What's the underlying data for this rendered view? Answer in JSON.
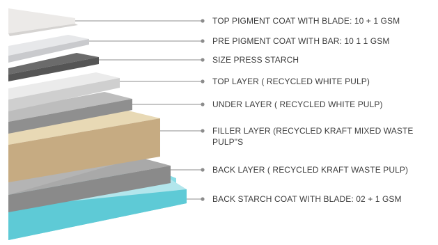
{
  "diagram": {
    "layers": [
      {
        "label": "TOP PIGMENT COAT WITH BLADE: 10 + 1 GSM",
        "color": "#efecea"
      },
      {
        "label": "PRE PIGMENT COAT WITH BAR: 10 1 1 GSM",
        "color": "#e4e5e7"
      },
      {
        "label": "SIZE PRESS STARCH",
        "color": "#6e6e6e"
      },
      {
        "label": "TOP LAYER ( RECYCLED WHITE PULP)",
        "color": "#e1dfdd"
      },
      {
        "label": "UNDER LAYER ( RECYCLED WHITE PULP)",
        "color": "#a6a6a6"
      },
      {
        "label": "FILLER LAYER (RECYCLED KRAFT MIXED WASTE PULP\"S",
        "color": "#c9ad84"
      },
      {
        "label": "BACK LAYER ( RECYCLED KRAFT WASTE PULP)",
        "color": "#9a9a9a"
      },
      {
        "label": "BACK STARCH COAT WITH BLADE: 02 + 1 GSM",
        "color": "#5fcdd9"
      }
    ],
    "connector_color": "#8c8c8c"
  }
}
